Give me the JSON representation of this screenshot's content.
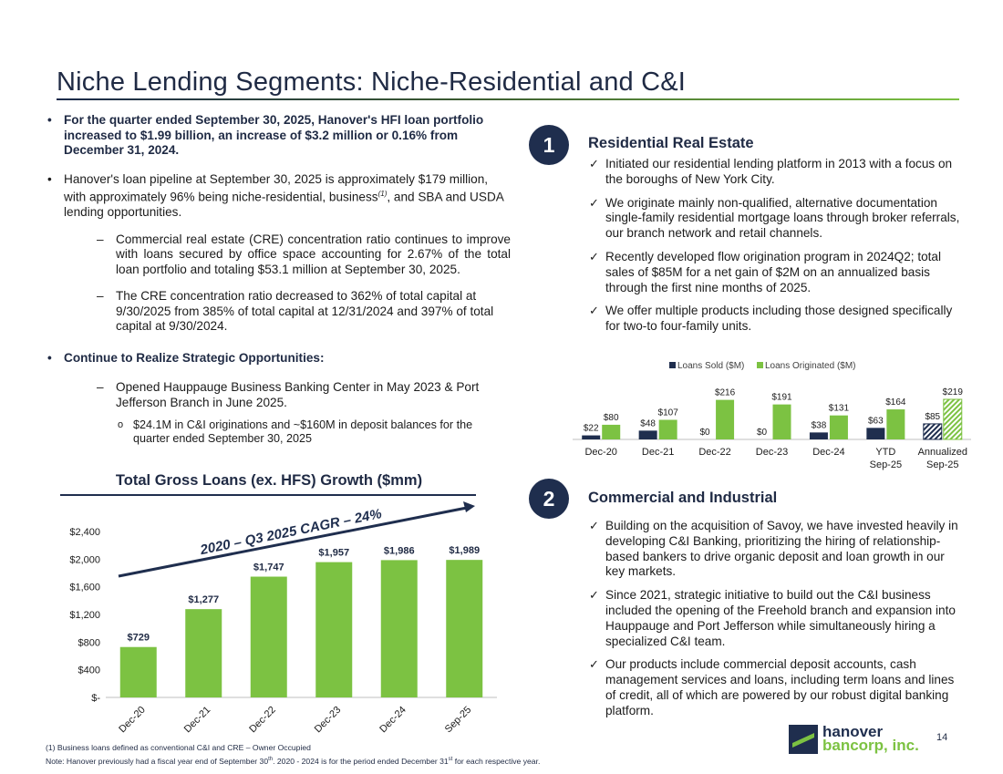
{
  "header": {
    "title": "Niche Lending Segments: Niche-Residential and C&I"
  },
  "left": {
    "b1": "For the quarter ended September 30, 2025, Hanover's HFI loan portfolio increased to $1.99 billion, an increase of $3.2 million or 0.16% from December 31, 2024.",
    "b2_pre": "Hanover's loan pipeline at September 30, 2025 is approximately $179 million, with approximately 96% being niche-residential, business",
    "b2_sup": "(1)",
    "b2_post": ", and SBA and USDA lending opportunities.",
    "s1": "Commercial real estate (CRE) concentration ratio continues to improve with loans secured by office space accounting for 2.67% of the total loan portfolio and totaling $53.1 million at September 30, 2025.",
    "s2": "The CRE concentration ratio decreased to 362% of total capital at 9/30/2025 from 385% of total capital at 12/31/2024 and 397% of total capital at 9/30/2024.",
    "b3": "Continue to Realize Strategic Opportunities:",
    "s3": "Opened Hauppauge Business Banking Center in May 2023 & Port Jefferson Branch in June 2025.",
    "ss1": "$24.1M in C&I originations and ~$160M in deposit balances for the quarter ended September 30, 2025"
  },
  "section1": {
    "number": "1",
    "heading": "Residential Real Estate",
    "checks": [
      "Initiated our residential lending platform in 2013 with a focus on the boroughs of New York City.",
      "We originate mainly non-qualified, alternative documentation single-family residential mortgage loans through broker referrals, our branch network and retail channels.",
      "Recently developed flow origination program in 2024Q2; total sales of $85M for a net gain of $2M on an annualized basis through the first nine months of 2025.",
      "We offer multiple products including those designed specifically for two-to four-family units."
    ]
  },
  "section2": {
    "number": "2",
    "heading": "Commercial and Industrial",
    "checks": [
      "Building on the acquisition of Savoy, we have invested heavily in developing C&I Banking, prioritizing the hiring of relationship-based bankers to drive organic deposit and loan growth in our key markets.",
      "Since 2021, strategic initiative to build out the C&I business included the opening of the Freehold branch and expansion into Hauppauge and Port Jefferson while simultaneously hiring a specialized C&I team.",
      "Our products include commercial deposit accounts, cash management services and loans, including term loans and lines of credit, all of which are powered by our robust digital banking platform."
    ]
  },
  "footnotes": {
    "f1": "(1)      Business loans defined as conventional C&I and CRE – Owner Occupied",
    "note_a": "Note: Hanover previously had a fiscal year end of September 30",
    "note_sup1": "th",
    "note_b": ". 2020 - 2024 is for the period ended December 31",
    "note_sup2": "st",
    "note_c": " for each respective year."
  },
  "logo": {
    "line1": "hanover",
    "line2": "bancorp, inc."
  },
  "page_number": "14",
  "colors": {
    "navy": "#1f2e4e",
    "green": "#7cc242"
  },
  "chart_data": [
    {
      "type": "bar",
      "title": "Total Gross Loans (ex. HFS) Growth ($mm)",
      "annotation": "2020 – Q3 2025 CAGR – 24%",
      "categories": [
        "Dec-20",
        "Dec-21",
        "Dec-22",
        "Dec-23",
        "Dec-24",
        "Sep-25"
      ],
      "values": [
        729,
        1277,
        1747,
        1957,
        1986,
        1989
      ],
      "data_labels": [
        "$729",
        "$1,277",
        "$1,747",
        "$1,957",
        "$1,986",
        "$1,989"
      ],
      "yticks": [
        0,
        400,
        800,
        1200,
        1600,
        2000,
        2400
      ],
      "ytick_labels": [
        "$-",
        "$400",
        "$800",
        "$1,200",
        "$1,600",
        "$2,000",
        "$2,400"
      ],
      "ylim": [
        0,
        2400
      ],
      "color": "#7cc242"
    },
    {
      "type": "bar",
      "categories": [
        "Dec-20",
        "Dec-21",
        "Dec-22",
        "Dec-23",
        "Dec-24",
        "YTD Sep-25",
        "Annualized Sep-25"
      ],
      "series": [
        {
          "name": "Loans Sold ($M)",
          "values": [
            22,
            48,
            0,
            0,
            38,
            63,
            85
          ],
          "labels": [
            "$22",
            "$48",
            "$0",
            "$0",
            "$38",
            "$63",
            "$85"
          ],
          "color": "#1f2e4e"
        },
        {
          "name": "Loans Originated ($M)",
          "values": [
            80,
            107,
            216,
            191,
            131,
            164,
            219
          ],
          "labels": [
            "$80",
            "$107",
            "$216",
            "$191",
            "$131",
            "$164",
            "$219"
          ],
          "color": "#7cc242"
        }
      ],
      "hatched_categories": [
        "Annualized Sep-25"
      ],
      "legend": "top-center"
    }
  ]
}
